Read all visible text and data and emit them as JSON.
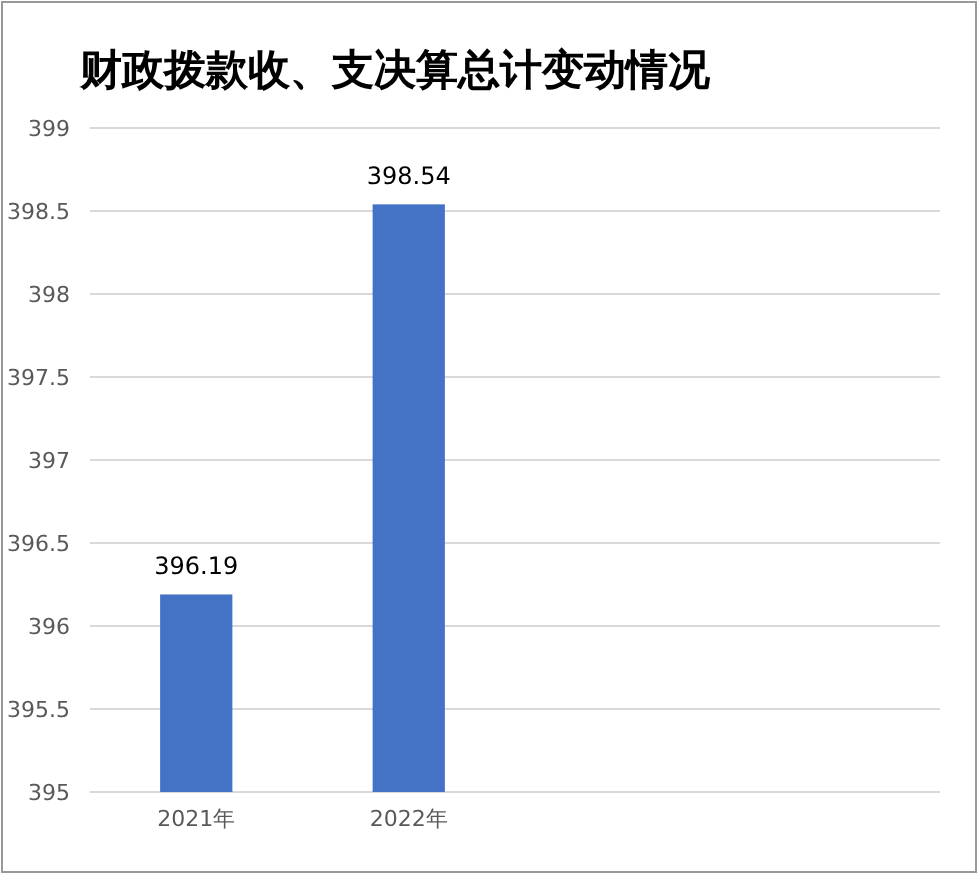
{
  "chart_data": {
    "type": "bar",
    "title": "财政拨款收、支决算总计变动情况",
    "categories": [
      "2021年",
      "2022年",
      null,
      null
    ],
    "values": [
      396.19,
      398.54,
      null,
      null
    ],
    "color": "#4472c4",
    "ylim": [
      395,
      399
    ],
    "yticks": [
      395,
      395.5,
      396,
      396.5,
      397,
      397.5,
      398,
      398.5,
      399
    ],
    "grid": "y",
    "data_labels": true
  }
}
